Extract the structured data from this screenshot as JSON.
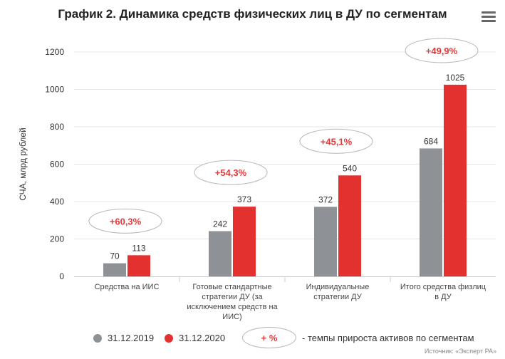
{
  "title": "График 2. Динамика средств физических лиц в ДУ по сегментам",
  "menu_icon": "hamburger-menu-icon",
  "colors": {
    "series_2019": "#8e9196",
    "series_2020": "#e3312f",
    "annotation": "#e03a3a"
  },
  "chart_data": {
    "type": "bar",
    "title": "График 2. Динамика средств физических лиц в ДУ по сегментам",
    "ylabel": "СЧА, млрд рублей",
    "xlabel": "",
    "ylim": [
      0,
      1200
    ],
    "yticks": [
      0,
      200,
      400,
      600,
      800,
      1000,
      1200
    ],
    "categories": [
      [
        "Средства на ИИС"
      ],
      [
        "Готовые стандартные",
        "стратегии ДУ (за",
        "исключением средств на",
        "ИИС)"
      ],
      [
        "Индивидуальные",
        "стратегии ДУ"
      ],
      [
        "Итого средства физлиц",
        "в ДУ"
      ]
    ],
    "series": [
      {
        "name": "31.12.2019",
        "values": [
          70,
          242,
          372,
          684
        ]
      },
      {
        "name": "31.12.2020",
        "values": [
          113,
          373,
          540,
          1025
        ]
      }
    ],
    "growth_labels": [
      "+60,3%",
      "+54,3%",
      "+45,1%",
      "+49,9%"
    ],
    "legend_placement": "bottom"
  },
  "legend": {
    "series_2019": "31.12.2019",
    "series_2020": "31.12.2020",
    "badge": "+  %",
    "description": "- темпы прироста активов по сегментам"
  },
  "source": "Источник: «Эксперт РА»"
}
